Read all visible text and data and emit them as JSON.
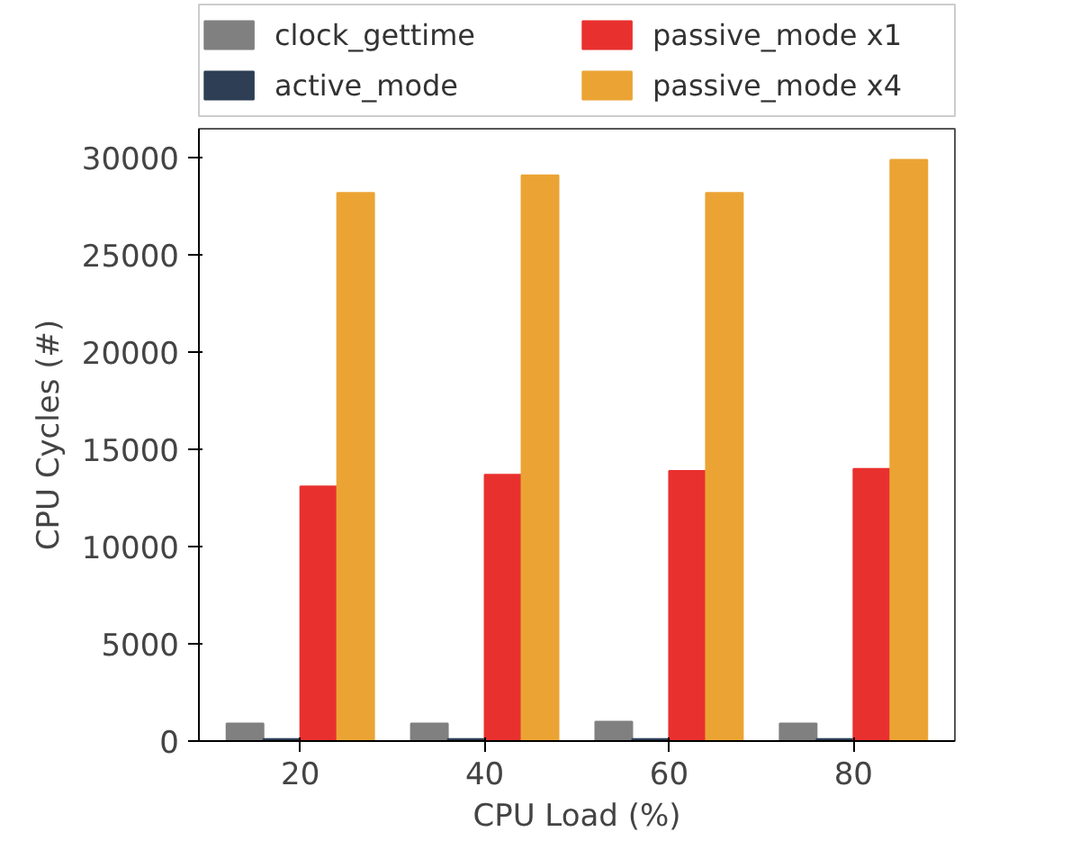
{
  "chart_data": {
    "type": "bar",
    "xlabel": "CPU Load (%)",
    "ylabel": "CPU Cycles (#)",
    "categories": [
      "20",
      "40",
      "60",
      "80"
    ],
    "series": [
      {
        "name": "clock_gettime",
        "color": "#808080",
        "values": [
          900,
          900,
          1000,
          900
        ]
      },
      {
        "name": "active_mode",
        "color": "#2e3f55",
        "values": [
          100,
          100,
          100,
          100
        ]
      },
      {
        "name": "passive_mode x1",
        "color": "#e8312f",
        "values": [
          13100,
          13700,
          13900,
          14000
        ]
      },
      {
        "name": "passive_mode x4",
        "color": "#eba434",
        "values": [
          28200,
          29100,
          28200,
          29900
        ]
      }
    ],
    "ylim": [
      0,
      31500
    ],
    "yticks": [
      0,
      5000,
      10000,
      15000,
      20000,
      25000,
      30000
    ],
    "grid": false,
    "legend": "top"
  }
}
